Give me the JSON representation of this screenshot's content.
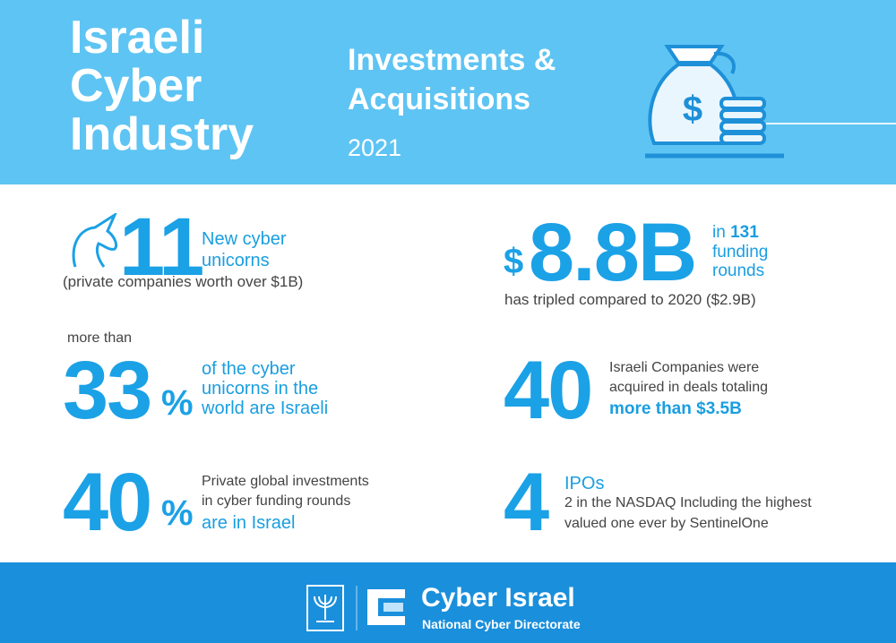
{
  "header": {
    "title_lines": [
      "Israeli",
      "Cyber",
      "Industry"
    ],
    "subtitle_lines": [
      "Investments &",
      "Acquisitions"
    ],
    "year": "2021"
  },
  "stats": [
    {
      "number": "11",
      "text_lines": [
        "New cyber",
        "unicorns"
      ],
      "note": "(private companies worth over $1B)"
    },
    {
      "prefix": "$",
      "number": "8.8B",
      "text_in": "in",
      "text_count": "131",
      "text_lines": [
        "funding",
        "rounds"
      ],
      "note": "has tripled compared to 2020 ($2.9B)"
    },
    {
      "intro": "more than",
      "number": "33",
      "unit": "%",
      "text_lines": [
        "of the cyber",
        "unicorns in the",
        "world are Israeli"
      ]
    },
    {
      "number": "40",
      "text_lines": [
        "Israeli Companies were",
        "acquired in deals totaling"
      ],
      "highlight": "more than $3.5B"
    },
    {
      "number": "40",
      "unit": "%",
      "text_lines": [
        "Private global investments",
        "in cyber funding rounds"
      ],
      "highlight": "are in Israel"
    },
    {
      "number": "4",
      "heading": "IPOs",
      "text_lines": [
        "2 in the NASDAQ Including the highest",
        "valued one ever by SentinelOne"
      ]
    }
  ],
  "footer": {
    "brand": "Cyber Israel",
    "tagline": "National Cyber Directorate"
  }
}
